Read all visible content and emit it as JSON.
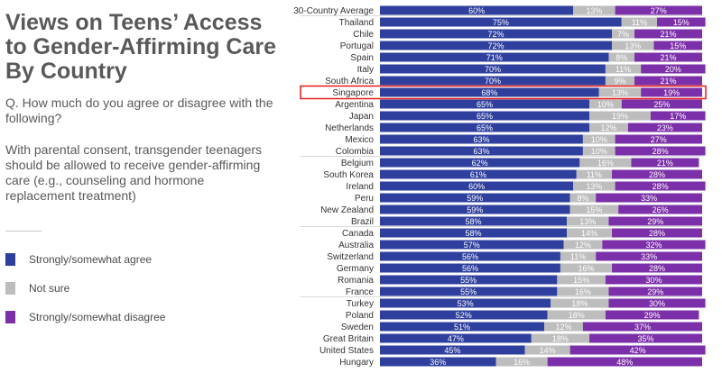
{
  "title": "Views on Teens’ Access to Gender-Affirming Care By Country",
  "question": "Q. How much do you agree or disagree with the following?",
  "statement": "With parental consent, transgender teenagers should be allowed to receive gender-affirming care (e.g., counseling and hormone replacement treatment)",
  "highlight": "Singapore",
  "highlight_color": "#e31b1b",
  "chart_data": {
    "type": "bar",
    "stacked": true,
    "orientation": "horizontal",
    "xlim": [
      0,
      100
    ],
    "categories": [
      "30-Country Average",
      "Thailand",
      "Chile",
      "Portugal",
      "Spain",
      "Italy",
      "South Africa",
      "Singapore",
      "Argentina",
      "Japan",
      "Netherlands",
      "Mexico",
      "Colombia",
      "Belgium",
      "South Korea",
      "Ireland",
      "Peru",
      "New Zealand",
      "Brazil",
      "Canada",
      "Australia",
      "Switzerland",
      "Germany",
      "Romania",
      "France",
      "Turkey",
      "Poland",
      "Sweden",
      "Great Britain",
      "United States",
      "Hungary"
    ],
    "series": [
      {
        "name": "Strongly/somewhat agree",
        "color": "#2e3f9e",
        "values": [
          60,
          75,
          72,
          72,
          71,
          70,
          70,
          68,
          65,
          65,
          65,
          63,
          63,
          62,
          61,
          60,
          59,
          59,
          58,
          58,
          57,
          56,
          56,
          55,
          55,
          53,
          52,
          51,
          47,
          45,
          36
        ]
      },
      {
        "name": "Not sure",
        "color": "#bdbdbd",
        "values": [
          13,
          11,
          7,
          13,
          8,
          11,
          9,
          13,
          10,
          19,
          12,
          10,
          10,
          16,
          11,
          13,
          8,
          15,
          13,
          14,
          12,
          11,
          16,
          15,
          16,
          18,
          18,
          12,
          18,
          14,
          16
        ]
      },
      {
        "name": "Strongly/somewhat disagree",
        "color": "#7b2fa8",
        "values": [
          27,
          15,
          21,
          15,
          21,
          20,
          21,
          19,
          25,
          17,
          23,
          27,
          28,
          21,
          28,
          28,
          33,
          26,
          29,
          28,
          32,
          33,
          28,
          30,
          29,
          30,
          29,
          37,
          35,
          42,
          48
        ]
      }
    ]
  }
}
